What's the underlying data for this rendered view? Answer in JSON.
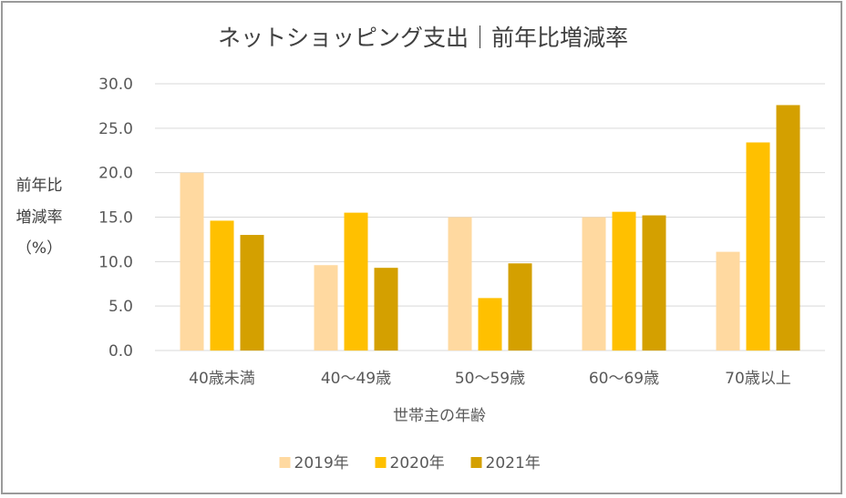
{
  "chart_data": {
    "type": "bar",
    "title": "ネットショッピング支出｜前年比増減率",
    "xlabel": "世帯主の年齢",
    "ylabel_lines": [
      "前年比",
      "増減率",
      "（%）"
    ],
    "categories": [
      "40歳未満",
      "40～49歳",
      "50～59歳",
      "60～69歳",
      "70歳以上"
    ],
    "series": [
      {
        "name": "2019年",
        "color": "#FFD9A0",
        "values": [
          20.0,
          9.6,
          15.0,
          15.0,
          11.1
        ]
      },
      {
        "name": "2020年",
        "color": "#FFC000",
        "values": [
          14.6,
          15.5,
          5.9,
          15.6,
          23.4
        ]
      },
      {
        "name": "2021年",
        "color": "#D4A000",
        "values": [
          13.0,
          9.3,
          9.8,
          15.2,
          27.6
        ]
      }
    ],
    "ylim": [
      0,
      30
    ],
    "yticks": [
      "0.0",
      "5.0",
      "10.0",
      "15.0",
      "20.0",
      "25.0",
      "30.0"
    ],
    "grid": true,
    "legend_position": "bottom"
  }
}
